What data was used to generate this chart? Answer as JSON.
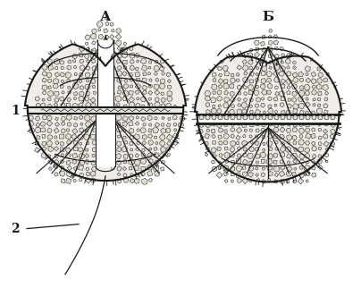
{
  "label_A": "А",
  "label_B": "Б",
  "label_1": "1",
  "label_2": "2",
  "bg_color": "#ffffff",
  "line_color": "#1a1a1a",
  "body_fill": "#f0ede8",
  "plate_fill": "#e0dcd0",
  "dark_plate": "#c8c4b8",
  "girdle_fill": "#d8d4c8",
  "fig_width": 4.04,
  "fig_height": 3.22,
  "dpi": 100,
  "label_fontsize": 11,
  "num_fontsize": 10
}
